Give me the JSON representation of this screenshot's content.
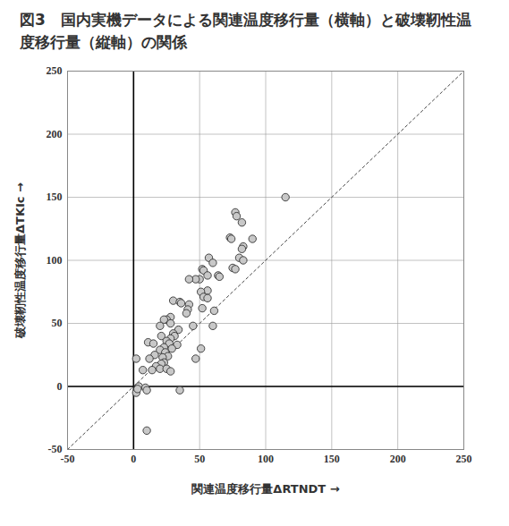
{
  "chart_data": {
    "type": "scatter",
    "title": "図3　国内実機データによる関連温度移行量（横軸）と破壊靭性温度移行量（縦軸）の関係",
    "x_label": "関連温度移行量ΔRTNDT",
    "y_label": "破壊靭性温度移行量ΔTKIc",
    "x": [
      115,
      77,
      78,
      82,
      90,
      73,
      74,
      83,
      82,
      57,
      80,
      83,
      60,
      75,
      77,
      52,
      53,
      56,
      64,
      65,
      50,
      47,
      42,
      56,
      51,
      53,
      56,
      30,
      35,
      36,
      42,
      41,
      52,
      61,
      40,
      28,
      25,
      23,
      28,
      20,
      60,
      45,
      34,
      30,
      31,
      21,
      28,
      25,
      27,
      11,
      15,
      33,
      51,
      23,
      29,
      20,
      24,
      16,
      26,
      22,
      12,
      2,
      47,
      23,
      21,
      17,
      20,
      25,
      14,
      28,
      7,
      4,
      9,
      10,
      2,
      3,
      35,
      10
    ],
    "values": [
      150,
      138,
      135,
      130,
      117,
      118,
      117,
      111,
      109,
      102,
      102,
      100,
      98,
      94,
      93,
      93,
      92,
      88,
      88,
      87,
      85,
      85,
      85,
      76,
      75,
      71,
      70,
      68,
      67,
      66,
      65,
      61,
      62,
      60,
      58,
      55,
      53,
      53,
      50,
      48,
      48,
      48,
      45,
      42,
      40,
      40,
      38,
      36,
      34,
      35,
      34,
      33,
      30,
      31,
      30,
      29,
      27,
      25,
      24,
      23,
      22,
      22,
      22,
      19,
      18,
      16,
      14,
      14,
      13,
      12,
      13,
      0,
      -1,
      -3,
      -5,
      -2,
      -3,
      -35
    ],
    "color": "#c8c8c8",
    "marker": "circle",
    "xlim": [
      -50,
      250
    ],
    "ylim": [
      -50,
      250
    ],
    "xticks": [
      -50,
      0,
      50,
      100,
      150,
      200,
      250
    ],
    "yticks": [
      -50,
      0,
      50,
      100,
      150,
      200,
      250
    ],
    "grid": true
  }
}
